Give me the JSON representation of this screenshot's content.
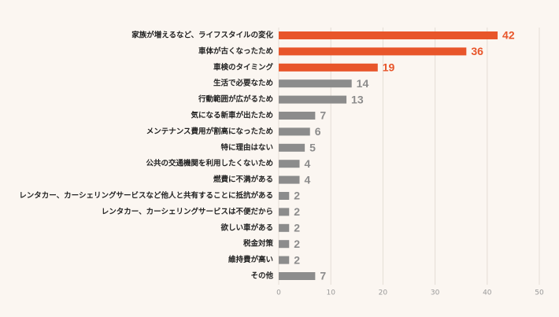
{
  "chart_data": {
    "type": "barh",
    "categories": [
      "家族が増えるなど、ライフスタイルの変化",
      "車体が古くなったため",
      "車検のタイミング",
      "生活で必要なため",
      "行動範囲が広がるため",
      "気になる新車が出たため",
      "メンテナンス費用が割高になったため",
      "特に理由はない",
      "公共の交通機関を利用したくないため",
      "燃費に不満がある",
      "レンタカー、カーシェリングサービスなど他人と共有することに抵抗がある",
      "レンタカー、カーシェリングサービスは不便だから",
      "欲しい車がある",
      "税金対策",
      "維持費が高い",
      "その他"
    ],
    "values": [
      42,
      36,
      19,
      14,
      13,
      7,
      6,
      5,
      4,
      4,
      2,
      2,
      2,
      2,
      2,
      7
    ],
    "colors": [
      "#e8552a",
      "#e8552a",
      "#e8552a",
      "#8c8c8c",
      "#8c8c8c",
      "#8c8c8c",
      "#8c8c8c",
      "#8c8c8c",
      "#8c8c8c",
      "#8c8c8c",
      "#8c8c8c",
      "#8c8c8c",
      "#8c8c8c",
      "#8c8c8c",
      "#8c8c8c",
      "#8c8c8c"
    ],
    "xlim": [
      0,
      50
    ],
    "xticks": [
      0,
      10,
      20,
      30,
      40,
      50
    ],
    "grid": true
  }
}
